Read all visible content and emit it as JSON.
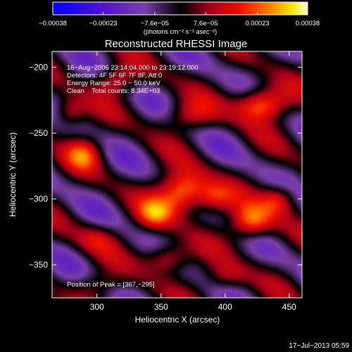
{
  "chart_data": {
    "type": "heatmap",
    "title": "Reconstructed RHESSI Image",
    "xlabel": "Heliocentric X (arcsec)",
    "ylabel": "Heliocentric Y (arcsec)",
    "xlim": [
      265,
      460
    ],
    "ylim": [
      -375,
      -188
    ],
    "x_ticks": [
      300,
      350,
      400,
      450
    ],
    "y_ticks": [
      -200,
      -250,
      -300,
      -350
    ],
    "x_tick_labels": [
      "300",
      "350",
      "400",
      "450"
    ],
    "y_tick_labels": [
      "−200",
      "−250",
      "−300",
      "−350"
    ],
    "colorbar": {
      "min": -0.00038,
      "max": 0.00038,
      "colormap": "blue-purple-black-red-yellow-white",
      "tick_values": [
        -0.00038,
        -0.00023,
        -7.6e-05,
        7.6e-05,
        0.00023,
        0.00038
      ],
      "tick_labels": [
        "−0.00038",
        "−0.00023",
        "−7.6e−05",
        "7.6e−05",
        "0.00023",
        "0.00038"
      ],
      "unit_label": "(photons cm⁻² s⁻¹ asec⁻²)"
    },
    "annotation_lines": [
      "16−Aug−2006 23:14:04.000 to 23:19:12.000",
      "Detectors: 4F 5F 6F 7F 8F, Att 0",
      "Energy Range: 25.0 − 50.0 keV",
      "Clean    Total counts: 8.34E+03"
    ],
    "peak_label": "Position of Peak = [367,−295]",
    "peak_position": [
      367,
      -295
    ],
    "bright_sources": [
      {
        "x": 367,
        "y": -295,
        "amp": 1.0,
        "rx": 14,
        "ry": 11
      },
      {
        "x": 428,
        "y": -228,
        "amp": 0.92,
        "rx": 14,
        "ry": 9
      },
      {
        "x": 420,
        "y": -318,
        "amp": 0.8,
        "rx": 12,
        "ry": 9
      },
      {
        "x": 442,
        "y": -300,
        "amp": 0.6,
        "rx": 10,
        "ry": 8
      },
      {
        "x": 355,
        "y": -345,
        "amp": 0.65,
        "rx": 12,
        "ry": 8
      },
      {
        "x": 290,
        "y": -265,
        "amp": 0.55,
        "rx": 10,
        "ry": 9
      },
      {
        "x": 278,
        "y": -235,
        "amp": 0.55,
        "rx": 9,
        "ry": 8
      },
      {
        "x": 315,
        "y": -210,
        "amp": 0.5,
        "rx": 12,
        "ry": 8
      },
      {
        "x": 372,
        "y": -237,
        "amp": 0.45,
        "rx": 14,
        "ry": 8
      },
      {
        "x": 345,
        "y": -312,
        "amp": 0.5,
        "rx": 10,
        "ry": 8
      },
      {
        "x": 392,
        "y": -300,
        "amp": 0.45,
        "rx": 10,
        "ry": 8
      },
      {
        "x": 300,
        "y": -330,
        "amp": 0.35,
        "rx": 12,
        "ry": 8
      },
      {
        "x": 400,
        "y": -360,
        "amp": 0.4,
        "rx": 12,
        "ry": 8
      },
      {
        "x": 300,
        "y": -365,
        "amp": 0.3,
        "rx": 12,
        "ry": 7
      }
    ]
  },
  "footer_timestamp": "17−Jul−2013 05:59"
}
